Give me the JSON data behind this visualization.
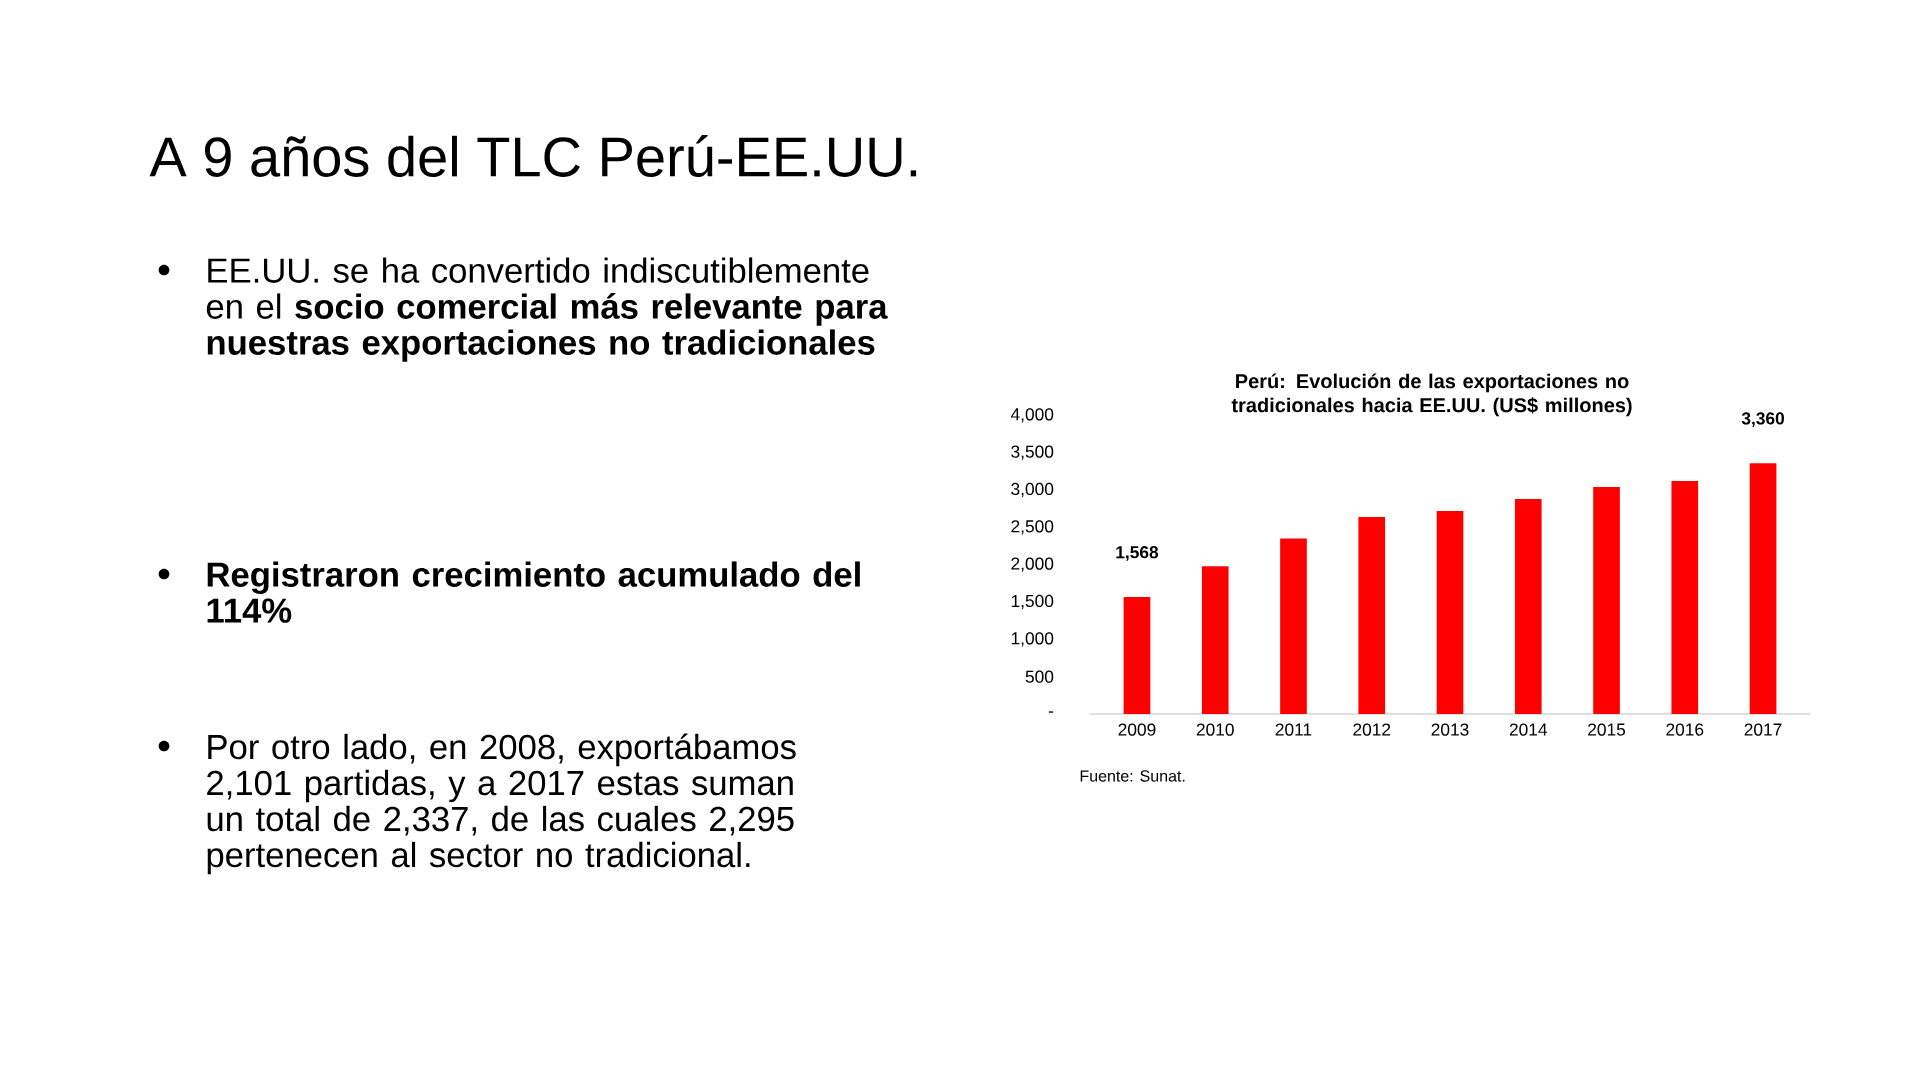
{
  "chart_data": {
    "type": "bar",
    "title": "A 9 años del TLC Perú-EE.UU.",
    "subtitle": "Perú: Evolución de las exportaciones no tradicionales hacia EE.UU. (US$ millones)",
    "categories": [
      "2009",
      "2010",
      "2011",
      "2012",
      "2013",
      "2014",
      "2015",
      "2016",
      "2017"
    ],
    "values": [
      1568,
      1980,
      2350,
      2640,
      2720,
      2880,
      3040,
      3120,
      3360
    ],
    "value_labels": [
      "1,568",
      null,
      null,
      null,
      null,
      null,
      null,
      null,
      "3,360"
    ],
    "color": "#ff0000",
    "ylim": [
      0,
      4000
    ],
    "yticks": [
      {
        "value": 0,
        "label": "-"
      },
      500,
      {
        "value": 1000,
        "label": "1,000"
      },
      {
        "value": 1500,
        "label": "1,500"
      },
      {
        "value": 2000,
        "label": "2,000"
      },
      {
        "value": 2500,
        "label": "2,500"
      },
      {
        "value": 3000,
        "label": "3,000"
      },
      {
        "value": 3500,
        "label": "3,500"
      },
      {
        "value": 4000,
        "label": "4,000"
      }
    ],
    "annotations": [
      "EE.UU. se ha convertido indiscutiblemente en el **socio comercial más relevante para nuestras exportaciones no tradicionales**",
      "**Registraron crecimiento acumulado del 114%**",
      "Por otro lado, en 2008, exportábamos 2,101 partidas, y a 2017 estas suman un total de 2,337, de las cuales 2,295 pertenecen al sector no tradicional.",
      "Fuente: Sunat."
    ]
  }
}
